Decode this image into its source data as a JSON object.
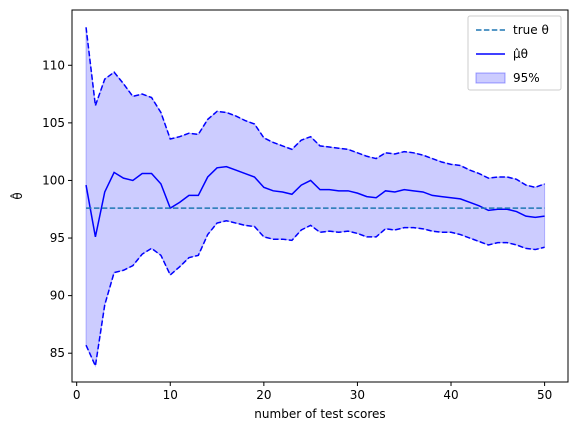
{
  "chart_data": {
    "type": "line",
    "title": "",
    "xlabel": "number of test scores",
    "ylabel": "θ̂",
    "xlim": [
      -0.5,
      52.5
    ],
    "ylim": [
      82.5,
      114.8
    ],
    "xticks": [
      0,
      10,
      20,
      30,
      40,
      50
    ],
    "yticks": [
      85,
      90,
      95,
      100,
      105,
      110
    ],
    "grid": false,
    "legend_position": "top-right",
    "true_theta": 97.6,
    "x": [
      1,
      2,
      3,
      4,
      5,
      6,
      7,
      8,
      9,
      10,
      11,
      12,
      13,
      14,
      15,
      16,
      17,
      18,
      19,
      20,
      21,
      22,
      23,
      24,
      25,
      26,
      27,
      28,
      29,
      30,
      31,
      32,
      33,
      34,
      35,
      36,
      37,
      38,
      39,
      40,
      41,
      42,
      43,
      44,
      45,
      46,
      47,
      48,
      49,
      50
    ],
    "series": [
      {
        "name": "true θ",
        "style": "dashed",
        "color": "#1f77b4"
      },
      {
        "name": "μ̂θ",
        "style": "solid",
        "color": "#0000ff",
        "values": [
          99.6,
          95.1,
          99.0,
          100.7,
          100.2,
          100.0,
          100.6,
          100.6,
          99.7,
          97.6,
          98.1,
          98.7,
          98.7,
          100.3,
          101.1,
          101.2,
          100.9,
          100.6,
          100.3,
          99.4,
          99.1,
          99.0,
          98.8,
          99.6,
          100.0,
          99.2,
          99.2,
          99.1,
          99.1,
          98.9,
          98.6,
          98.5,
          99.1,
          99.0,
          99.2,
          99.1,
          99.0,
          98.7,
          98.6,
          98.5,
          98.4,
          98.1,
          97.8,
          97.4,
          97.5,
          97.5,
          97.3,
          96.9,
          96.8,
          96.9
        ]
      },
      {
        "name": "95%",
        "style": "band",
        "color": "#0000ff",
        "upper": [
          113.3,
          106.5,
          108.8,
          109.4,
          108.4,
          107.3,
          107.5,
          107.2,
          105.9,
          103.6,
          103.8,
          104.1,
          104.0,
          105.3,
          106.0,
          105.9,
          105.6,
          105.2,
          104.9,
          103.7,
          103.3,
          103.0,
          102.7,
          103.5,
          103.8,
          103.0,
          102.9,
          102.8,
          102.7,
          102.4,
          102.1,
          101.9,
          102.4,
          102.3,
          102.5,
          102.4,
          102.2,
          101.9,
          101.6,
          101.4,
          101.3,
          100.9,
          100.6,
          100.2,
          100.3,
          100.3,
          100.1,
          99.6,
          99.4,
          99.7
        ],
        "lower": [
          85.7,
          83.9,
          89.2,
          92.0,
          92.2,
          92.6,
          93.6,
          94.1,
          93.5,
          91.8,
          92.5,
          93.3,
          93.5,
          95.3,
          96.3,
          96.5,
          96.3,
          96.1,
          96.0,
          95.1,
          94.9,
          94.9,
          94.8,
          95.7,
          96.1,
          95.5,
          95.6,
          95.5,
          95.6,
          95.4,
          95.1,
          95.1,
          95.8,
          95.7,
          95.9,
          95.9,
          95.8,
          95.6,
          95.5,
          95.5,
          95.3,
          95.0,
          94.7,
          94.4,
          94.6,
          94.6,
          94.4,
          94.1,
          94.0,
          94.2
        ]
      }
    ]
  }
}
